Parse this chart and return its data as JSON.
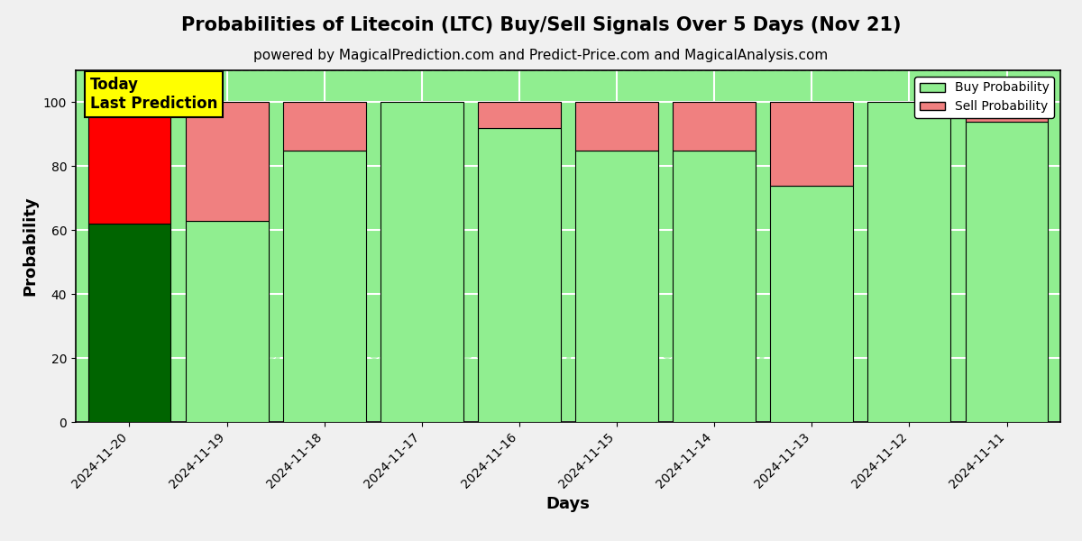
{
  "title": "Probabilities of Litecoin (LTC) Buy/Sell Signals Over 5 Days (Nov 21)",
  "subtitle": "powered by MagicalPrediction.com and Predict-Price.com and MagicalAnalysis.com",
  "xlabel": "Days",
  "ylabel": "Probability",
  "categories": [
    "2024-11-20",
    "2024-11-19",
    "2024-11-18",
    "2024-11-17",
    "2024-11-16",
    "2024-11-15",
    "2024-11-14",
    "2024-11-13",
    "2024-11-12",
    "2024-11-11"
  ],
  "buy_values": [
    62,
    63,
    85,
    100,
    92,
    85,
    85,
    74,
    100,
    94
  ],
  "sell_values": [
    38,
    37,
    15,
    0,
    8,
    15,
    15,
    26,
    0,
    6
  ],
  "today_bar_buy_color": "#006400",
  "today_bar_sell_color": "#FF0000",
  "normal_bar_buy_color": "#90EE90",
  "normal_bar_sell_color": "#F08080",
  "today_annotation_text": "Today\nLast Prediction",
  "today_annotation_bg": "#FFFF00",
  "legend_buy_label": "Buy Probability",
  "legend_sell_label": "Sell Probability",
  "ylim": [
    0,
    110
  ],
  "dashed_line_y": 110,
  "bar_width": 0.85,
  "grid_color": "#FFFFFF",
  "plot_bg_color": "#90EE90",
  "fig_bg_color": "#F0F0F0",
  "title_fontsize": 15,
  "subtitle_fontsize": 11,
  "axis_label_fontsize": 13
}
